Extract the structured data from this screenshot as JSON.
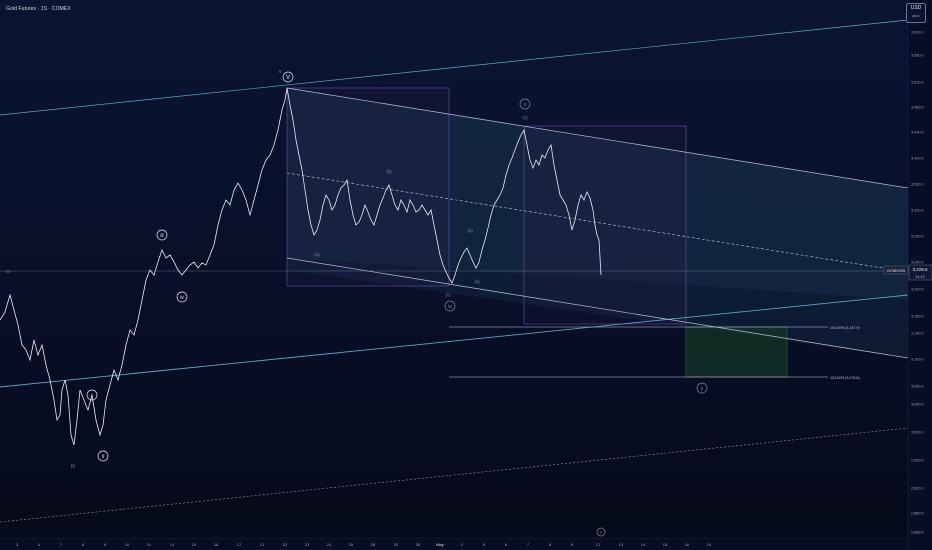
{
  "header": {
    "symbol_title": "Gold Futures · 1S · COMEX",
    "currency": "USD",
    "currency_sub": "apoc"
  },
  "colors": {
    "background": "#070d22",
    "price_line": "#e8ecf4",
    "channel_line": "#b8c2d6",
    "trend_line": "#5aa9c0",
    "channel_fill": "#1a3450",
    "box_border": "#6d4aa8",
    "target_fill": "#143524",
    "label_muted": "#7f8798"
  },
  "price_axis": {
    "labels": [
      "3,600.0",
      "3,560.0",
      "3,520.0",
      "3,480.0",
      "3,440.0",
      "3,400.0",
      "3,360.0",
      "3,320.0",
      "3,280.0",
      "3,240.0",
      "3,200.0",
      "3,160.0",
      "3,140.0",
      "3,100.0",
      "3,060.0",
      "3,040.0",
      "3,000.0",
      "2,960.0",
      "2,920.0",
      "2,880.0",
      "2,868.0"
    ],
    "symbol_tag": "GCM2025",
    "last_price": "3,229.5",
    "countdown": "14:12"
  },
  "time_axis": {
    "labels": [
      "3",
      "4",
      "7",
      "8",
      "9",
      "10",
      "11",
      "14",
      "15",
      "16",
      "17",
      "21",
      "22",
      "23",
      "24",
      "25",
      "28",
      "29",
      "30",
      "May",
      "2",
      "5",
      "6",
      "7",
      "8",
      "9",
      "12",
      "13",
      "14",
      "15",
      "16",
      "19"
    ]
  },
  "wave_labels": {
    "V_top": "v",
    "V": "V",
    "iii": "iii",
    "iv": "iv",
    "i": "i",
    "ii": "ii",
    "IV": "IV",
    "x": "x",
    "bc": "(c)",
    "w": "w",
    "y": "y",
    "z": "z",
    "a1": "(a)",
    "b1": "(b)",
    "c1": "(c)",
    "a2": "(a)",
    "b2": "(b)",
    "III": "III"
  },
  "fib_levels": {
    "level1": "100.00% (3,147.9)",
    "level2": "123.60% (3,076.6)"
  }
}
